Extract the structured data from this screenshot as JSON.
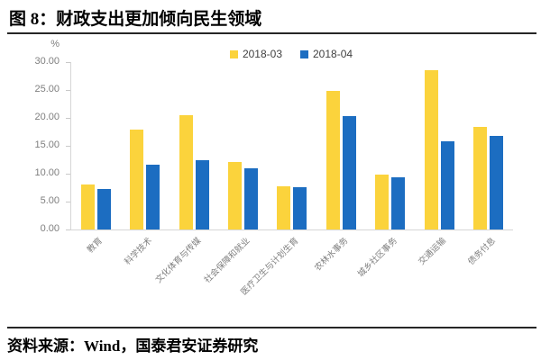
{
  "title": "图 8：财政支出更加倾向民生领域",
  "source": "资料来源：Wind，国泰君安证券研究",
  "colors": {
    "series_2018_03": "#FBD33C",
    "series_2018_04": "#1C6DC1",
    "axis_text": "#7f7f7f",
    "axis_line": "#d6d6d6",
    "divider": "#262626",
    "legend_text": "#404040"
  },
  "chart_data": {
    "type": "bar",
    "title": "图 8：财政支出更加倾向民生领域",
    "ylabel": "%",
    "xlabel": "",
    "ylim": [
      0,
      30
    ],
    "y_ticks": [
      "30.00",
      "25.00",
      "20.00",
      "15.00",
      "10.00",
      "5.00",
      "0.00"
    ],
    "grid": false,
    "legend_position": "top-center",
    "categories": [
      "教育",
      "科学技术",
      "文化体育与传媒",
      "社会保障和就业",
      "医疗卫生与计划生育",
      "农林水事务",
      "城乡社区事务",
      "交通运输",
      "债务付息"
    ],
    "series": [
      {
        "name": "2018-03",
        "color": "#FBD33C",
        "values": [
          8.1,
          17.9,
          20.5,
          12.1,
          7.8,
          24.8,
          9.9,
          28.5,
          18.4
        ]
      },
      {
        "name": "2018-04",
        "color": "#1C6DC1",
        "values": [
          7.2,
          11.7,
          12.5,
          10.9,
          7.6,
          20.4,
          9.3,
          15.8,
          16.8
        ]
      }
    ]
  }
}
